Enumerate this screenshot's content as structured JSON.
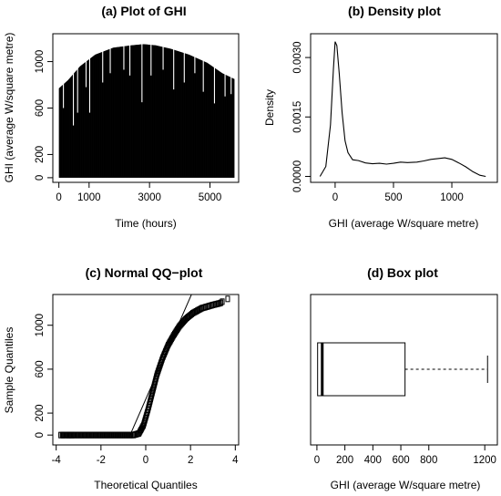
{
  "chart_data": [
    {
      "type": "bar",
      "title": "(a) Plot of GHI",
      "xlabel": "Time (hours)",
      "ylabel": "GHI (average W/square metre)",
      "xlim": [
        -200,
        5950
      ],
      "ylim": [
        -40,
        1240
      ],
      "xticks": [
        0,
        1000,
        3000,
        5000
      ],
      "yticks": [
        0,
        200,
        600,
        1000
      ],
      "n_hours": 5800,
      "envelope": {
        "x": [
          0,
          300,
          700,
          1200,
          1800,
          2400,
          2800,
          3200,
          3700,
          4300,
          4900,
          5400,
          5800
        ],
        "y": [
          770,
          840,
          960,
          1060,
          1120,
          1140,
          1150,
          1140,
          1110,
          1060,
          990,
          900,
          850
        ]
      },
      "dips": [
        {
          "x": 150,
          "y": 600
        },
        {
          "x": 480,
          "y": 450
        },
        {
          "x": 620,
          "y": 560
        },
        {
          "x": 900,
          "y": 780
        },
        {
          "x": 1020,
          "y": 560
        },
        {
          "x": 1450,
          "y": 820
        },
        {
          "x": 1700,
          "y": 900
        },
        {
          "x": 2150,
          "y": 930
        },
        {
          "x": 2350,
          "y": 880
        },
        {
          "x": 2750,
          "y": 650
        },
        {
          "x": 3050,
          "y": 880
        },
        {
          "x": 3450,
          "y": 930
        },
        {
          "x": 3800,
          "y": 760
        },
        {
          "x": 4150,
          "y": 820
        },
        {
          "x": 4500,
          "y": 900
        },
        {
          "x": 4780,
          "y": 740
        },
        {
          "x": 5150,
          "y": 640
        },
        {
          "x": 5500,
          "y": 700
        },
        {
          "x": 5700,
          "y": 720
        }
      ],
      "grid": false
    },
    {
      "type": "line",
      "title": "(b) Density plot",
      "xlabel": "GHI (average W/square metre)",
      "ylabel": "Density",
      "xlim": [
        -210,
        1390
      ],
      "ylim": [
        -0.00015,
        0.0036
      ],
      "xticks": [
        0,
        500,
        1000
      ],
      "yticks": [
        0.0,
        0.0015,
        0.003
      ],
      "ytick_labels": [
        "0.0000",
        "0.0015",
        "0.0030"
      ],
      "x": [
        -130,
        -80,
        -40,
        -15,
        0,
        15,
        35,
        60,
        85,
        110,
        150,
        200,
        260,
        320,
        380,
        440,
        500,
        560,
        620,
        700,
        760,
        820,
        880,
        940,
        1000,
        1060,
        1120,
        1180,
        1240,
        1290
      ],
      "y": [
        0.0,
        0.00025,
        0.0013,
        0.0027,
        0.0034,
        0.0033,
        0.0026,
        0.0016,
        0.0009,
        0.0006,
        0.00042,
        0.0004,
        0.00034,
        0.00032,
        0.00033,
        0.00031,
        0.00033,
        0.00036,
        0.00035,
        0.00036,
        0.00039,
        0.00043,
        0.00045,
        0.00047,
        0.00043,
        0.00034,
        0.00024,
        0.00012,
        3e-05,
        0.0
      ],
      "grid": false
    },
    {
      "type": "scatter",
      "title": "(c) Normal QQ−plot",
      "xlabel": "Theoretical Quantiles",
      "ylabel": "Sample Quantiles",
      "xlim": [
        -4.15,
        4.15
      ],
      "ylim": [
        -90,
        1280
      ],
      "xticks": [
        -4,
        -2,
        0,
        2,
        4
      ],
      "yticks": [
        0,
        200,
        600,
        1000
      ],
      "qq_curve": {
        "x": [
          -3.8,
          -0.55,
          -0.3,
          -0.1,
          0.1,
          0.3,
          0.5,
          0.75,
          1.0,
          1.25,
          1.5,
          1.8,
          2.1,
          2.5,
          3.0,
          3.3,
          3.42
        ],
        "y": [
          0,
          0,
          15,
          90,
          230,
          390,
          550,
          700,
          820,
          910,
          990,
          1060,
          1110,
          1155,
          1185,
          1200,
          1210
        ]
      },
      "outliers": [
        {
          "x": -3.3,
          "y": 0
        },
        {
          "x": -3.45,
          "y": 0
        },
        {
          "x": -3.7,
          "y": 0
        },
        {
          "x": 3.42,
          "y": 1215
        },
        {
          "x": 3.66,
          "y": 1240
        }
      ],
      "qq_line": {
        "x": [
          -0.7,
          2.15
        ],
        "y": [
          0,
          1330
        ]
      },
      "grid": false
    },
    {
      "type": "box",
      "title": "(d) Box plot",
      "xlabel": "GHI (average W/square metre)",
      "xlim": [
        -45,
        1290
      ],
      "xticks": [
        0,
        200,
        400,
        600,
        800,
        1200
      ],
      "min": 0,
      "q1": 5,
      "median": 38,
      "q3": 630,
      "whisker_max": 1220,
      "grid": false
    }
  ]
}
